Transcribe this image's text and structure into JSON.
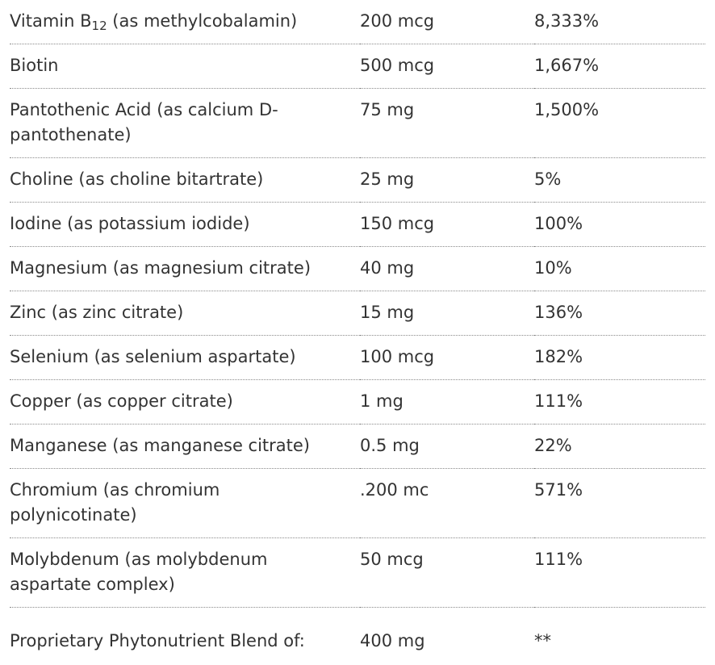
{
  "table": {
    "rows": [
      [
        [
          "Vitamin B",
          "12",
          " (as methylcobalamin)"
        ],
        "200 mcg",
        "8,333%"
      ],
      [
        "Biotin",
        "500 mcg",
        "1,667%"
      ],
      [
        "Pantothenic Acid (as calcium D-pantothenate)",
        "75 mg",
        "1,500%"
      ],
      [
        "Choline (as choline bitartrate)",
        "25 mg",
        "5%"
      ],
      [
        "Iodine (as potassium iodide)",
        "150 mcg",
        "100%"
      ],
      [
        "Magnesium (as magnesium citrate)",
        "40 mg",
        "10%"
      ],
      [
        "Zinc (as zinc citrate)",
        "15 mg",
        "136%"
      ],
      [
        "Selenium (as selenium aspartate)",
        "100 mcg",
        "182%"
      ],
      [
        "Copper (as copper citrate)",
        "1 mg",
        "111%"
      ],
      [
        "Manganese (as manganese citrate)",
        "0.5 mg",
        "22%"
      ],
      [
        "Chromium (as chromium polynicotinate)",
        ".200 mc",
        "571%"
      ],
      [
        "Molybdenum (as molybdenum aspartate complex)",
        "50 mcg",
        "111%"
      ],
      [
        "Proprietary Phytonutrient Blend of:",
        "400 mg",
        "**"
      ]
    ]
  }
}
